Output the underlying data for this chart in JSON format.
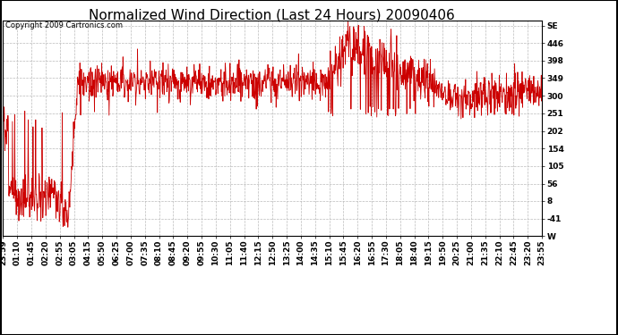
{
  "title": "Normalized Wind Direction (Last 24 Hours) 20090406",
  "copyright_text": "Copyright 2009 Cartronics.com",
  "line_color": "#CC0000",
  "bg_color": "#FFFFFF",
  "plot_bg_color": "#FFFFFF",
  "grid_color": "#BBBBBB",
  "ytick_labels": [
    "W",
    "-41",
    "8",
    "56",
    "105",
    "154",
    "202",
    "251",
    "300",
    "349",
    "398",
    "446",
    "SE"
  ],
  "ytick_values": [
    -90,
    -41,
    8,
    56,
    105,
    154,
    202,
    251,
    300,
    349,
    398,
    446,
    495
  ],
  "ylim": [
    -90,
    510
  ],
  "xtick_labels": [
    "23:59",
    "01:10",
    "01:45",
    "02:20",
    "02:55",
    "03:05",
    "04:15",
    "05:50",
    "06:25",
    "07:00",
    "07:35",
    "08:10",
    "08:45",
    "09:20",
    "09:55",
    "10:30",
    "11:05",
    "11:40",
    "12:15",
    "12:50",
    "13:25",
    "14:00",
    "14:35",
    "15:10",
    "15:45",
    "16:20",
    "16:55",
    "17:30",
    "18:05",
    "18:40",
    "19:15",
    "19:50",
    "20:25",
    "21:00",
    "21:35",
    "22:10",
    "22:45",
    "23:20",
    "23:55"
  ],
  "title_fontsize": 11,
  "axis_fontsize": 6.5,
  "copyright_fontsize": 6
}
